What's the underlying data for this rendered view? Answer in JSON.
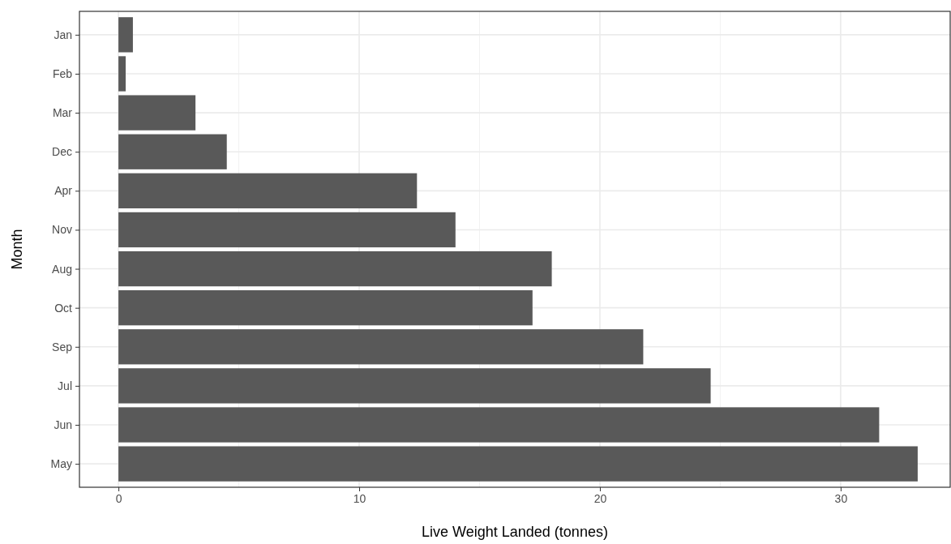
{
  "chart_data": {
    "type": "bar",
    "orientation": "horizontal",
    "xlabel": "Live Weight Landed (tonnes)",
    "ylabel": "Month",
    "categories": [
      "Jan",
      "Feb",
      "Mar",
      "Dec",
      "Apr",
      "Nov",
      "Aug",
      "Oct",
      "Sep",
      "Jul",
      "Jun",
      "May"
    ],
    "values": [
      0.6,
      0.3,
      3.2,
      4.5,
      12.4,
      14.0,
      18.0,
      17.2,
      21.8,
      24.6,
      31.6,
      33.2
    ],
    "color": "#595959",
    "xlim": [
      -1.62,
      34.55
    ],
    "xticks": [
      0,
      10,
      20,
      30
    ],
    "grid": true
  }
}
